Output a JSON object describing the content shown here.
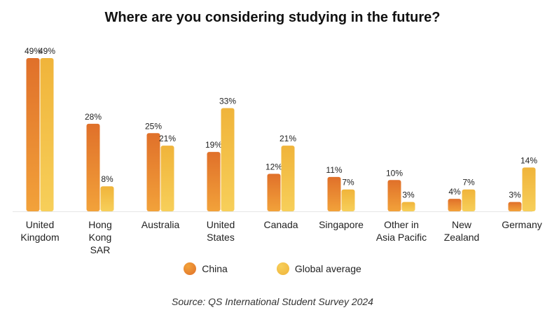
{
  "chart_data": {
    "type": "bar",
    "title": "Where are you considering studying in the future?",
    "categories": [
      [
        "United",
        "Kingdom"
      ],
      [
        "Hong",
        "Kong",
        "SAR"
      ],
      [
        "Australia"
      ],
      [
        "United",
        "States"
      ],
      [
        "Canada"
      ],
      [
        "Singapore"
      ],
      [
        "Other in",
        "Asia Pacific"
      ],
      [
        "New",
        "Zealand"
      ],
      [
        "Germany"
      ]
    ],
    "series": [
      {
        "name": "China",
        "values": [
          49,
          28,
          25,
          19,
          12,
          11,
          10,
          4,
          3
        ],
        "color_top": "#e0702a",
        "color_bottom": "#f2a23a"
      },
      {
        "name": "Global average",
        "values": [
          49,
          8,
          21,
          33,
          21,
          7,
          3,
          7,
          14
        ],
        "color_top": "#f0b43a",
        "color_bottom": "#f7cf5a"
      }
    ],
    "value_suffix": "%",
    "ylim": [
      0,
      49
    ],
    "grid": false,
    "legend_position": "bottom",
    "source": "Source: QS International Student Survey 2024"
  }
}
